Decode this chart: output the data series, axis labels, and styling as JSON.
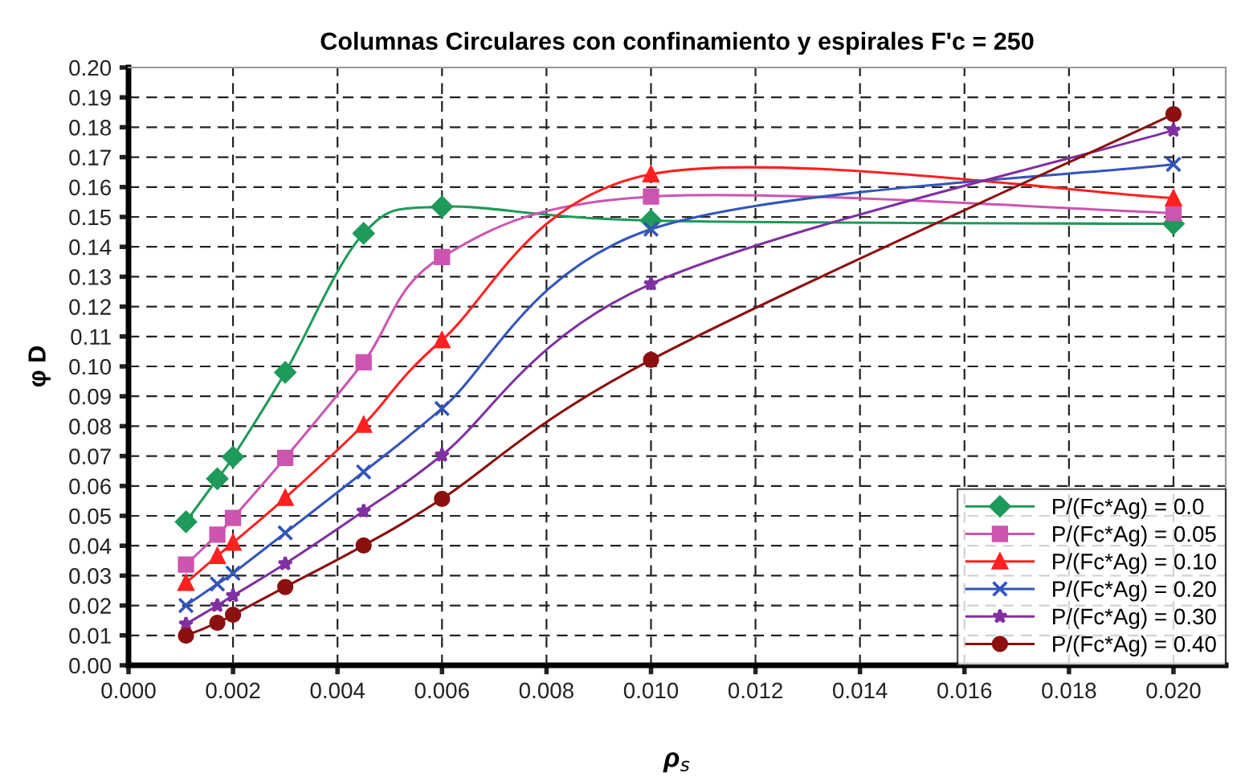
{
  "chart_data": {
    "type": "line",
    "title": "Columnas Circulares con confinamiento y espirales F'c = 250",
    "xlabel": "ρ$_{s}$",
    "ylabel": "φ D",
    "x": [
      0.0011,
      0.0017,
      0.002,
      0.003,
      0.0045,
      0.006,
      0.01,
      0.02
    ],
    "series": [
      {
        "name": "P/(Fc*Ag) = 0.0",
        "color": "#1e9a5a",
        "marker": "diamond",
        "values": [
          0.048,
          0.0624,
          0.0697,
          0.098,
          0.1445,
          0.1534,
          0.1488,
          0.1477
        ]
      },
      {
        "name": "P/(Fc*Ag) = 0.05",
        "color": "#cc55b0",
        "marker": "square",
        "values": [
          0.0337,
          0.0437,
          0.0493,
          0.0694,
          0.1014,
          0.1366,
          0.1568,
          0.1513
        ]
      },
      {
        "name": "P/(Fc*Ag) = 0.10",
        "color": "#ff2020",
        "marker": "triangle",
        "values": [
          0.0276,
          0.0366,
          0.041,
          0.056,
          0.0805,
          0.1088,
          0.1643,
          0.1563
        ]
      },
      {
        "name": "P/(Fc*Ag) = 0.20",
        "color": "#3355bb",
        "marker": "cross",
        "values": [
          0.02,
          0.0272,
          0.0308,
          0.0443,
          0.0647,
          0.0859,
          0.1459,
          0.1676
        ]
      },
      {
        "name": "P/(Fc*Ag) = 0.30",
        "color": "#8030a0",
        "marker": "star",
        "values": [
          0.0138,
          0.02,
          0.0233,
          0.034,
          0.0516,
          0.0703,
          0.1276,
          0.179
        ]
      },
      {
        "name": "P/(Fc*Ag) = 0.40",
        "color": "#8b1010",
        "marker": "circle",
        "values": [
          0.0099,
          0.0142,
          0.0169,
          0.0262,
          0.0401,
          0.0557,
          0.1022,
          0.1844
        ]
      }
    ],
    "xlim": [
      0,
      0.021
    ],
    "xticks": [
      {
        "value": 0,
        "label": "0.000"
      },
      {
        "value": 0.002,
        "label": "0.002"
      },
      {
        "value": 0.004,
        "label": "0.004"
      },
      {
        "value": 0.006,
        "label": "0.006"
      },
      {
        "value": 0.008,
        "label": "0.008"
      },
      {
        "value": 0.01,
        "label": "0.010"
      },
      {
        "value": 0.012,
        "label": "0.012"
      },
      {
        "value": 0.014,
        "label": "0.014"
      },
      {
        "value": 0.016,
        "label": "0.016"
      },
      {
        "value": 0.018,
        "label": "0.018"
      },
      {
        "value": 0.02,
        "label": "0.020"
      }
    ],
    "ylim": [
      0,
      0.2
    ],
    "yticks": [
      {
        "value": 0,
        "label": "0.00"
      },
      {
        "value": 0.01,
        "label": "0.01"
      },
      {
        "value": 0.02,
        "label": "0.02"
      },
      {
        "value": 0.03,
        "label": "0.03"
      },
      {
        "value": 0.04,
        "label": "0.04"
      },
      {
        "value": 0.05,
        "label": "0.05"
      },
      {
        "value": 0.06,
        "label": "0.06"
      },
      {
        "value": 0.07,
        "label": "0.07"
      },
      {
        "value": 0.08,
        "label": "0.08"
      },
      {
        "value": 0.09,
        "label": "0.09"
      },
      {
        "value": 0.1,
        "label": "0.10"
      },
      {
        "value": 0.11,
        "label": "0.11"
      },
      {
        "value": 0.12,
        "label": "0.12"
      },
      {
        "value": 0.13,
        "label": "0.13"
      },
      {
        "value": 0.14,
        "label": "0.14"
      },
      {
        "value": 0.15,
        "label": "0.15"
      },
      {
        "value": 0.16,
        "label": "0.16"
      },
      {
        "value": 0.17,
        "label": "0.17"
      },
      {
        "value": 0.18,
        "label": "0.18"
      },
      {
        "value": 0.19,
        "label": "0.19"
      },
      {
        "value": 0.2,
        "label": "0.20"
      }
    ],
    "grid": true,
    "legend": "bottom right",
    "line_style": "solid"
  }
}
